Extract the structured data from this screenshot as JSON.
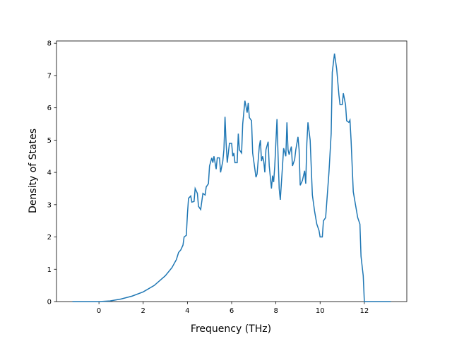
{
  "chart_data": {
    "type": "line",
    "x_label": "Frequency (THz)",
    "y_label": "Density of States",
    "x": [
      -1.2,
      0.0,
      0.5,
      1.0,
      1.5,
      2.0,
      2.5,
      3.0,
      3.3,
      3.5,
      3.6,
      3.7,
      3.8,
      3.85,
      3.95,
      4.0,
      4.05,
      4.15,
      4.2,
      4.3,
      4.35,
      4.45,
      4.5,
      4.6,
      4.7,
      4.8,
      4.85,
      4.95,
      5.0,
      5.1,
      5.15,
      5.2,
      5.3,
      5.35,
      5.45,
      5.5,
      5.6,
      5.65,
      5.7,
      5.75,
      5.8,
      5.9,
      6.0,
      6.05,
      6.1,
      6.15,
      6.25,
      6.3,
      6.35,
      6.45,
      6.5,
      6.6,
      6.7,
      6.75,
      6.8,
      6.9,
      6.95,
      7.05,
      7.1,
      7.15,
      7.25,
      7.3,
      7.35,
      7.4,
      7.45,
      7.5,
      7.55,
      7.65,
      7.7,
      7.8,
      7.85,
      7.9,
      7.95,
      8.05,
      8.1,
      8.15,
      8.2,
      8.3,
      8.35,
      8.45,
      8.5,
      8.55,
      8.6,
      8.7,
      8.75,
      8.85,
      8.9,
      9.0,
      9.05,
      9.1,
      9.2,
      9.3,
      9.35,
      9.4,
      9.45,
      9.55,
      9.65,
      9.75,
      9.85,
      9.95,
      10.0,
      10.1,
      10.15,
      10.25,
      10.4,
      10.5,
      10.55,
      10.65,
      10.75,
      10.85,
      10.9,
      11.0,
      11.05,
      11.15,
      11.2,
      11.3,
      11.35,
      11.4,
      11.5,
      11.6,
      11.7,
      11.8,
      11.85,
      11.95,
      12.0,
      13.2
    ],
    "series": [
      {
        "color": "#1f77b4",
        "values": [
          0,
          0,
          0.02,
          0.08,
          0.17,
          0.3,
          0.5,
          0.8,
          1.05,
          1.3,
          1.52,
          1.6,
          1.75,
          2.0,
          2.05,
          2.7,
          3.2,
          3.27,
          3.08,
          3.1,
          3.5,
          3.35,
          2.95,
          2.85,
          3.35,
          3.3,
          3.55,
          3.65,
          4.2,
          4.45,
          4.3,
          4.5,
          4.1,
          4.45,
          4.45,
          4.0,
          4.35,
          4.7,
          5.72,
          4.9,
          4.3,
          4.9,
          4.9,
          4.5,
          4.6,
          4.3,
          4.3,
          5.2,
          4.7,
          4.6,
          5.5,
          6.22,
          5.85,
          6.15,
          5.7,
          5.6,
          4.6,
          4.1,
          3.85,
          3.95,
          4.8,
          5.0,
          4.35,
          4.5,
          4.35,
          4.0,
          4.7,
          4.95,
          4.2,
          3.5,
          3.9,
          3.7,
          4.2,
          5.65,
          4.5,
          3.5,
          3.15,
          4.2,
          4.75,
          4.5,
          5.55,
          4.7,
          4.55,
          4.8,
          4.2,
          4.4,
          4.7,
          5.1,
          4.7,
          3.6,
          3.75,
          4.05,
          3.65,
          4.9,
          5.55,
          5.0,
          3.3,
          2.8,
          2.4,
          2.2,
          2.0,
          2.0,
          2.5,
          2.6,
          4.0,
          5.2,
          7.1,
          7.68,
          7.2,
          6.4,
          6.1,
          6.1,
          6.45,
          6.1,
          5.6,
          5.55,
          5.62,
          5.0,
          3.4,
          3.0,
          2.6,
          2.4,
          1.4,
          0.8,
          0,
          0
        ]
      }
    ],
    "xlim": [
      -1.92,
      13.92
    ],
    "ylim": [
      0,
      8.07
    ],
    "xticks": [
      0,
      2,
      4,
      6,
      8,
      10,
      12
    ],
    "yticks": [
      0,
      1,
      2,
      3,
      4,
      5,
      6,
      7,
      8
    ]
  }
}
